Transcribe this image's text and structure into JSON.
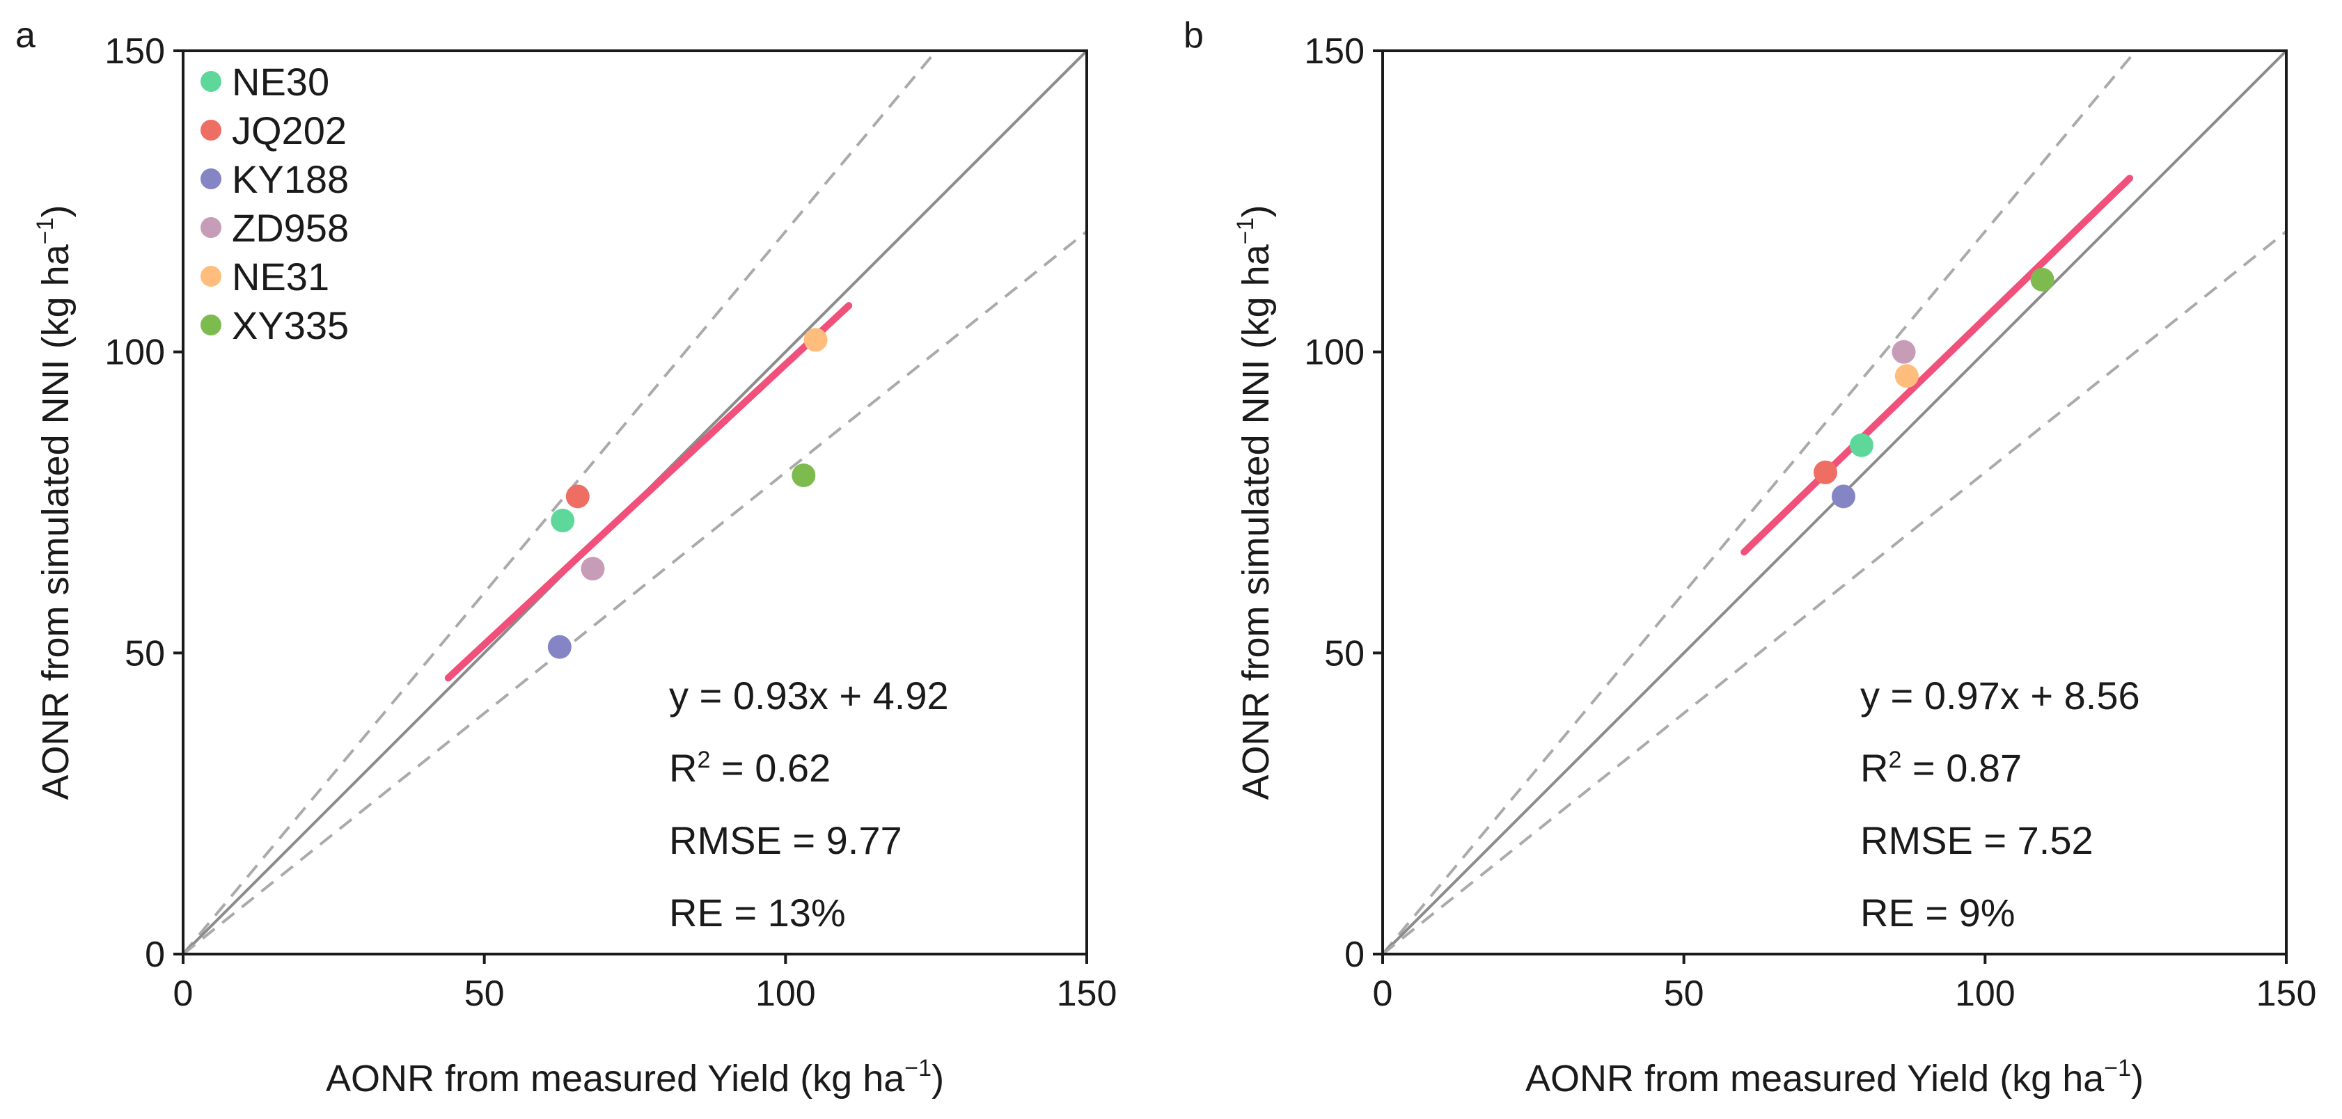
{
  "chart_data": [
    {
      "panel": "a",
      "type": "scatter",
      "xlabel": "AONR from measured Yield (kg ha",
      "xlabel_sup": "−1",
      "xlabel_end": ")",
      "ylabel": "AONR from simulated NNI (kg ha",
      "ylabel_sup": "−1",
      "ylabel_end": ")",
      "xlim": [
        0,
        150
      ],
      "ylim": [
        0,
        150
      ],
      "xticks": [
        0,
        50,
        100,
        150
      ],
      "yticks": [
        0,
        50,
        100,
        150
      ],
      "points": [
        {
          "name": "NE30",
          "x": 63,
          "y": 72,
          "color": "#5dd89a"
        },
        {
          "name": "JQ202",
          "x": 65.5,
          "y": 76,
          "color": "#ee6e63"
        },
        {
          "name": "KY188",
          "x": 62.5,
          "y": 51,
          "color": "#8585c6"
        },
        {
          "name": "ZD958",
          "x": 68,
          "y": 64,
          "color": "#c79cb7"
        },
        {
          "name": "NE31",
          "x": 105,
          "y": 102,
          "color": "#ffbd7d"
        },
        {
          "name": "XY335",
          "x": 103,
          "y": 79.5,
          "color": "#7dbb4f"
        }
      ],
      "fit_line": {
        "slope": 0.93,
        "intercept": 4.92,
        "x_range": [
          44,
          110.5
        ],
        "color": "#f0507a"
      },
      "reference_lines": {
        "one_to_one": [
          0,
          150
        ],
        "upper_slope": 1.2,
        "lower_slope": 0.8
      },
      "stats": {
        "equation": "y = 0.93x + 4.92",
        "r2_label": "R",
        "r2_sup": "2",
        "r2_value": " = 0.62",
        "rmse": "RMSE = 9.77",
        "re": "RE = 13%"
      },
      "legend": [
        {
          "label": "NE30",
          "color": "#5dd89a"
        },
        {
          "label": "JQ202",
          "color": "#ee6e63"
        },
        {
          "label": "KY188",
          "color": "#8585c6"
        },
        {
          "label": "ZD958",
          "color": "#c79cb7"
        },
        {
          "label": "NE31",
          "color": "#ffbd7d"
        },
        {
          "label": "XY335",
          "color": "#7dbb4f"
        }
      ]
    },
    {
      "panel": "b",
      "type": "scatter",
      "xlabel": "AONR from measured Yield (kg ha",
      "xlabel_sup": "−1",
      "xlabel_end": ")",
      "ylabel": "AONR from simulated NNI (kg ha",
      "ylabel_sup": "−1",
      "ylabel_end": ")",
      "xlim": [
        0,
        150
      ],
      "ylim": [
        0,
        150
      ],
      "xticks": [
        0,
        50,
        100,
        150
      ],
      "yticks": [
        0,
        50,
        100,
        150
      ],
      "points": [
        {
          "name": "NE30",
          "x": 79.5,
          "y": 84.5,
          "color": "#5dd89a"
        },
        {
          "name": "JQ202",
          "x": 73.5,
          "y": 80,
          "color": "#ee6e63"
        },
        {
          "name": "KY188",
          "x": 76.5,
          "y": 76,
          "color": "#8585c6"
        },
        {
          "name": "ZD958",
          "x": 86.5,
          "y": 100,
          "color": "#c79cb7"
        },
        {
          "name": "NE31",
          "x": 87,
          "y": 96,
          "color": "#ffbd7d"
        },
        {
          "name": "XY335",
          "x": 109.5,
          "y": 112,
          "color": "#7dbb4f"
        }
      ],
      "fit_line": {
        "slope": 0.97,
        "intercept": 8.56,
        "x_range": [
          60,
          124
        ],
        "color": "#f0507a"
      },
      "reference_lines": {
        "one_to_one": [
          0,
          150
        ],
        "upper_slope": 1.2,
        "lower_slope": 0.8
      },
      "stats": {
        "equation": "y = 0.97x + 8.56",
        "r2_label": "R",
        "r2_sup": "2",
        "r2_value": " = 0.87",
        "rmse": "RMSE = 7.52",
        "re": "RE = 9%"
      },
      "legend": []
    }
  ]
}
